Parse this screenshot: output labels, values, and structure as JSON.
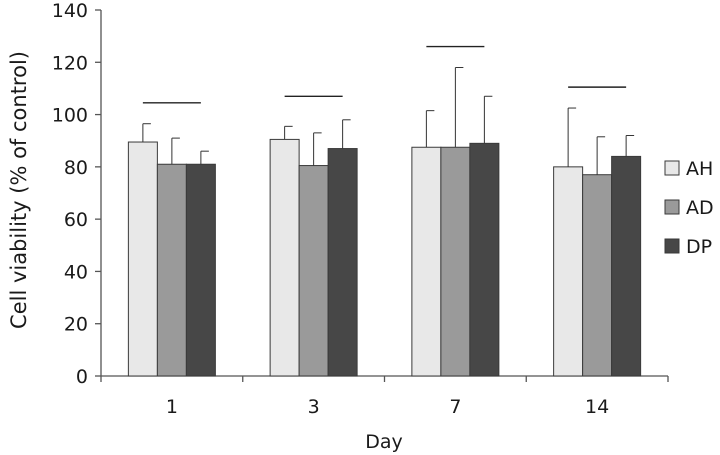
{
  "chart_data": {
    "type": "bar",
    "xlabel": "Day",
    "ylabel": "Cell viability (% of control)",
    "categories": [
      "1",
      "3",
      "7",
      "14"
    ],
    "ylim": [
      0,
      140
    ],
    "yticks": [
      0,
      20,
      40,
      60,
      80,
      100,
      120,
      140
    ],
    "grid": false,
    "legend_position": "right",
    "series": [
      {
        "name": "AH",
        "color": "#e8e8e8",
        "values": [
          89.5,
          90.5,
          87.5,
          80.0
        ],
        "errors": [
          7.0,
          5.0,
          14.0,
          22.5
        ]
      },
      {
        "name": "AD",
        "color": "#9a9a9a",
        "values": [
          81.0,
          80.5,
          87.5,
          77.0
        ],
        "errors": [
          10.0,
          12.5,
          30.5,
          14.5
        ]
      },
      {
        "name": "DP",
        "color": "#474747",
        "values": [
          81.0,
          87.0,
          89.0,
          84.0
        ],
        "errors": [
          5.0,
          11.0,
          18.0,
          8.0
        ]
      }
    ],
    "annotations": [
      {
        "type": "bracket",
        "category": "1",
        "y": 104.5
      },
      {
        "type": "bracket",
        "category": "3",
        "y": 107.0
      },
      {
        "type": "bracket",
        "category": "7",
        "y": 126.0
      },
      {
        "type": "bracket",
        "category": "14",
        "y": 110.5
      }
    ]
  }
}
